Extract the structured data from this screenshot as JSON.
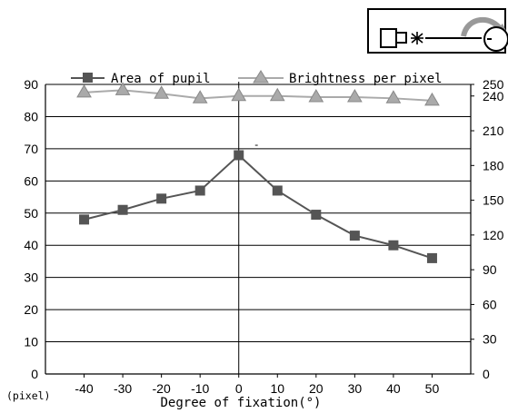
{
  "chart_data": {
    "type": "line",
    "title": "",
    "xlabel": "Degree of fixation(°)",
    "ylabel": "",
    "y_unit_label": "(pixel)",
    "x": [
      -40,
      -30,
      -20,
      -10,
      0,
      10,
      20,
      30,
      40,
      50
    ],
    "xlim": [
      -50,
      60
    ],
    "ylim_left": [
      0,
      90
    ],
    "ylim_right": [
      0,
      250
    ],
    "yticks_left": [
      0,
      10,
      20,
      30,
      40,
      50,
      60,
      70,
      80,
      90
    ],
    "yticks_right": [
      0,
      30,
      60,
      90,
      120,
      150,
      180,
      210,
      240,
      250
    ],
    "grid": true,
    "legend_position": "top",
    "center_annotation": "-",
    "series": [
      {
        "name": "Area of pupil",
        "axis": "left",
        "marker": "square",
        "color": "#555555",
        "values": [
          48,
          51,
          54.5,
          57,
          68,
          57,
          49.5,
          43,
          40,
          36
        ]
      },
      {
        "name": "Brightness per pixel",
        "axis": "right",
        "marker": "triangle",
        "color": "#aaaaaa",
        "values": [
          243,
          245,
          242,
          238,
          240,
          240,
          239,
          239,
          238,
          236
        ]
      }
    ]
  }
}
